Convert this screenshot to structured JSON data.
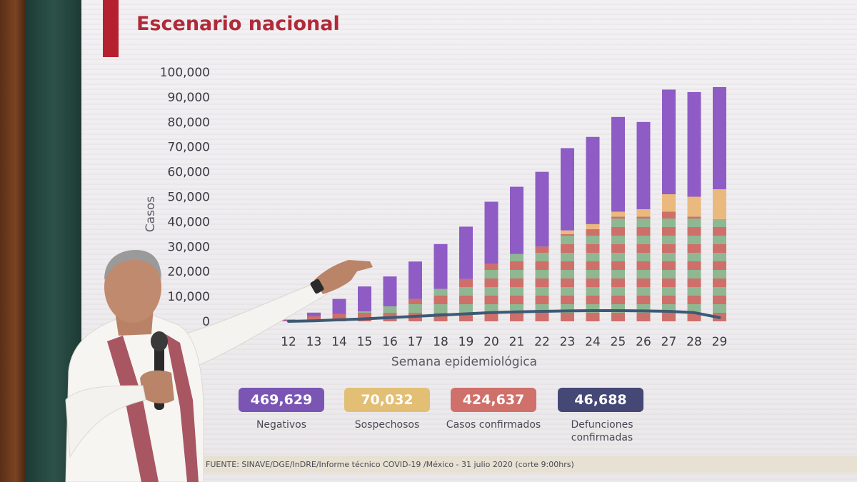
{
  "slide": {
    "title": "Escenario nacional",
    "source_note": "FUENTE: SINAVE/DGE/InDRE/Informe técnico COVID-19 /México - 31 julio 2020 (corte 9:00hrs)"
  },
  "colors": {
    "negativos": "#8e5cc4",
    "sospechosos": "#e9b97d",
    "confirmados": "#cf6f6a",
    "confirmados_alt": "#8fb892",
    "defunciones": "#3f3f6e",
    "title": "#b02a38"
  },
  "stats": [
    {
      "value": "469,629",
      "label": "Negativos",
      "color": "#7a55b4"
    },
    {
      "value": "70,032",
      "label": "Sospechosos",
      "color": "#e2bf74"
    },
    {
      "value": "424,637",
      "label": "Casos confirmados",
      "color": "#d0706a"
    },
    {
      "value": "46,688",
      "label": "Defunciones confirmadas",
      "color": "#454775"
    }
  ],
  "chart_data": {
    "type": "bar",
    "stacked": true,
    "title": "Escenario nacional",
    "xlabel": "Semana epidemiológica",
    "ylabel": "Casos",
    "ylim": [
      0,
      100000
    ],
    "yticks": [
      "0",
      "10,000",
      "20,000",
      "30,000",
      "40,000",
      "50,000",
      "60,000",
      "70,000",
      "80,000",
      "90,000",
      "100,000"
    ],
    "categories": [
      "12",
      "13",
      "14",
      "15",
      "16",
      "17",
      "18",
      "19",
      "20",
      "21",
      "22",
      "23",
      "24",
      "25",
      "26",
      "27",
      "28",
      "29"
    ],
    "series": [
      {
        "name": "Confirmados",
        "values": [
          300,
          2000,
          3000,
          4000,
          6000,
          9000,
          13000,
          17000,
          23000,
          27000,
          30000,
          35000,
          37000,
          42000,
          42000,
          44000,
          42000,
          41000
        ]
      },
      {
        "name": "Sospechosos",
        "values": [
          0,
          0,
          0,
          0,
          0,
          0,
          0,
          0,
          0,
          0,
          0,
          1500,
          2000,
          2000,
          3000,
          7000,
          8000,
          12000
        ]
      },
      {
        "name": "Negativos",
        "values": [
          400,
          1500,
          6000,
          10000,
          12000,
          15000,
          18000,
          21000,
          25000,
          27000,
          30000,
          33000,
          35000,
          38000,
          35000,
          42000,
          42000,
          41000
        ]
      }
    ],
    "line": {
      "name": "Defunciones",
      "values": [
        0,
        200,
        600,
        1000,
        1500,
        2000,
        2500,
        3000,
        3500,
        3800,
        4000,
        4200,
        4300,
        4300,
        4200,
        4000,
        3500,
        1500
      ]
    }
  }
}
